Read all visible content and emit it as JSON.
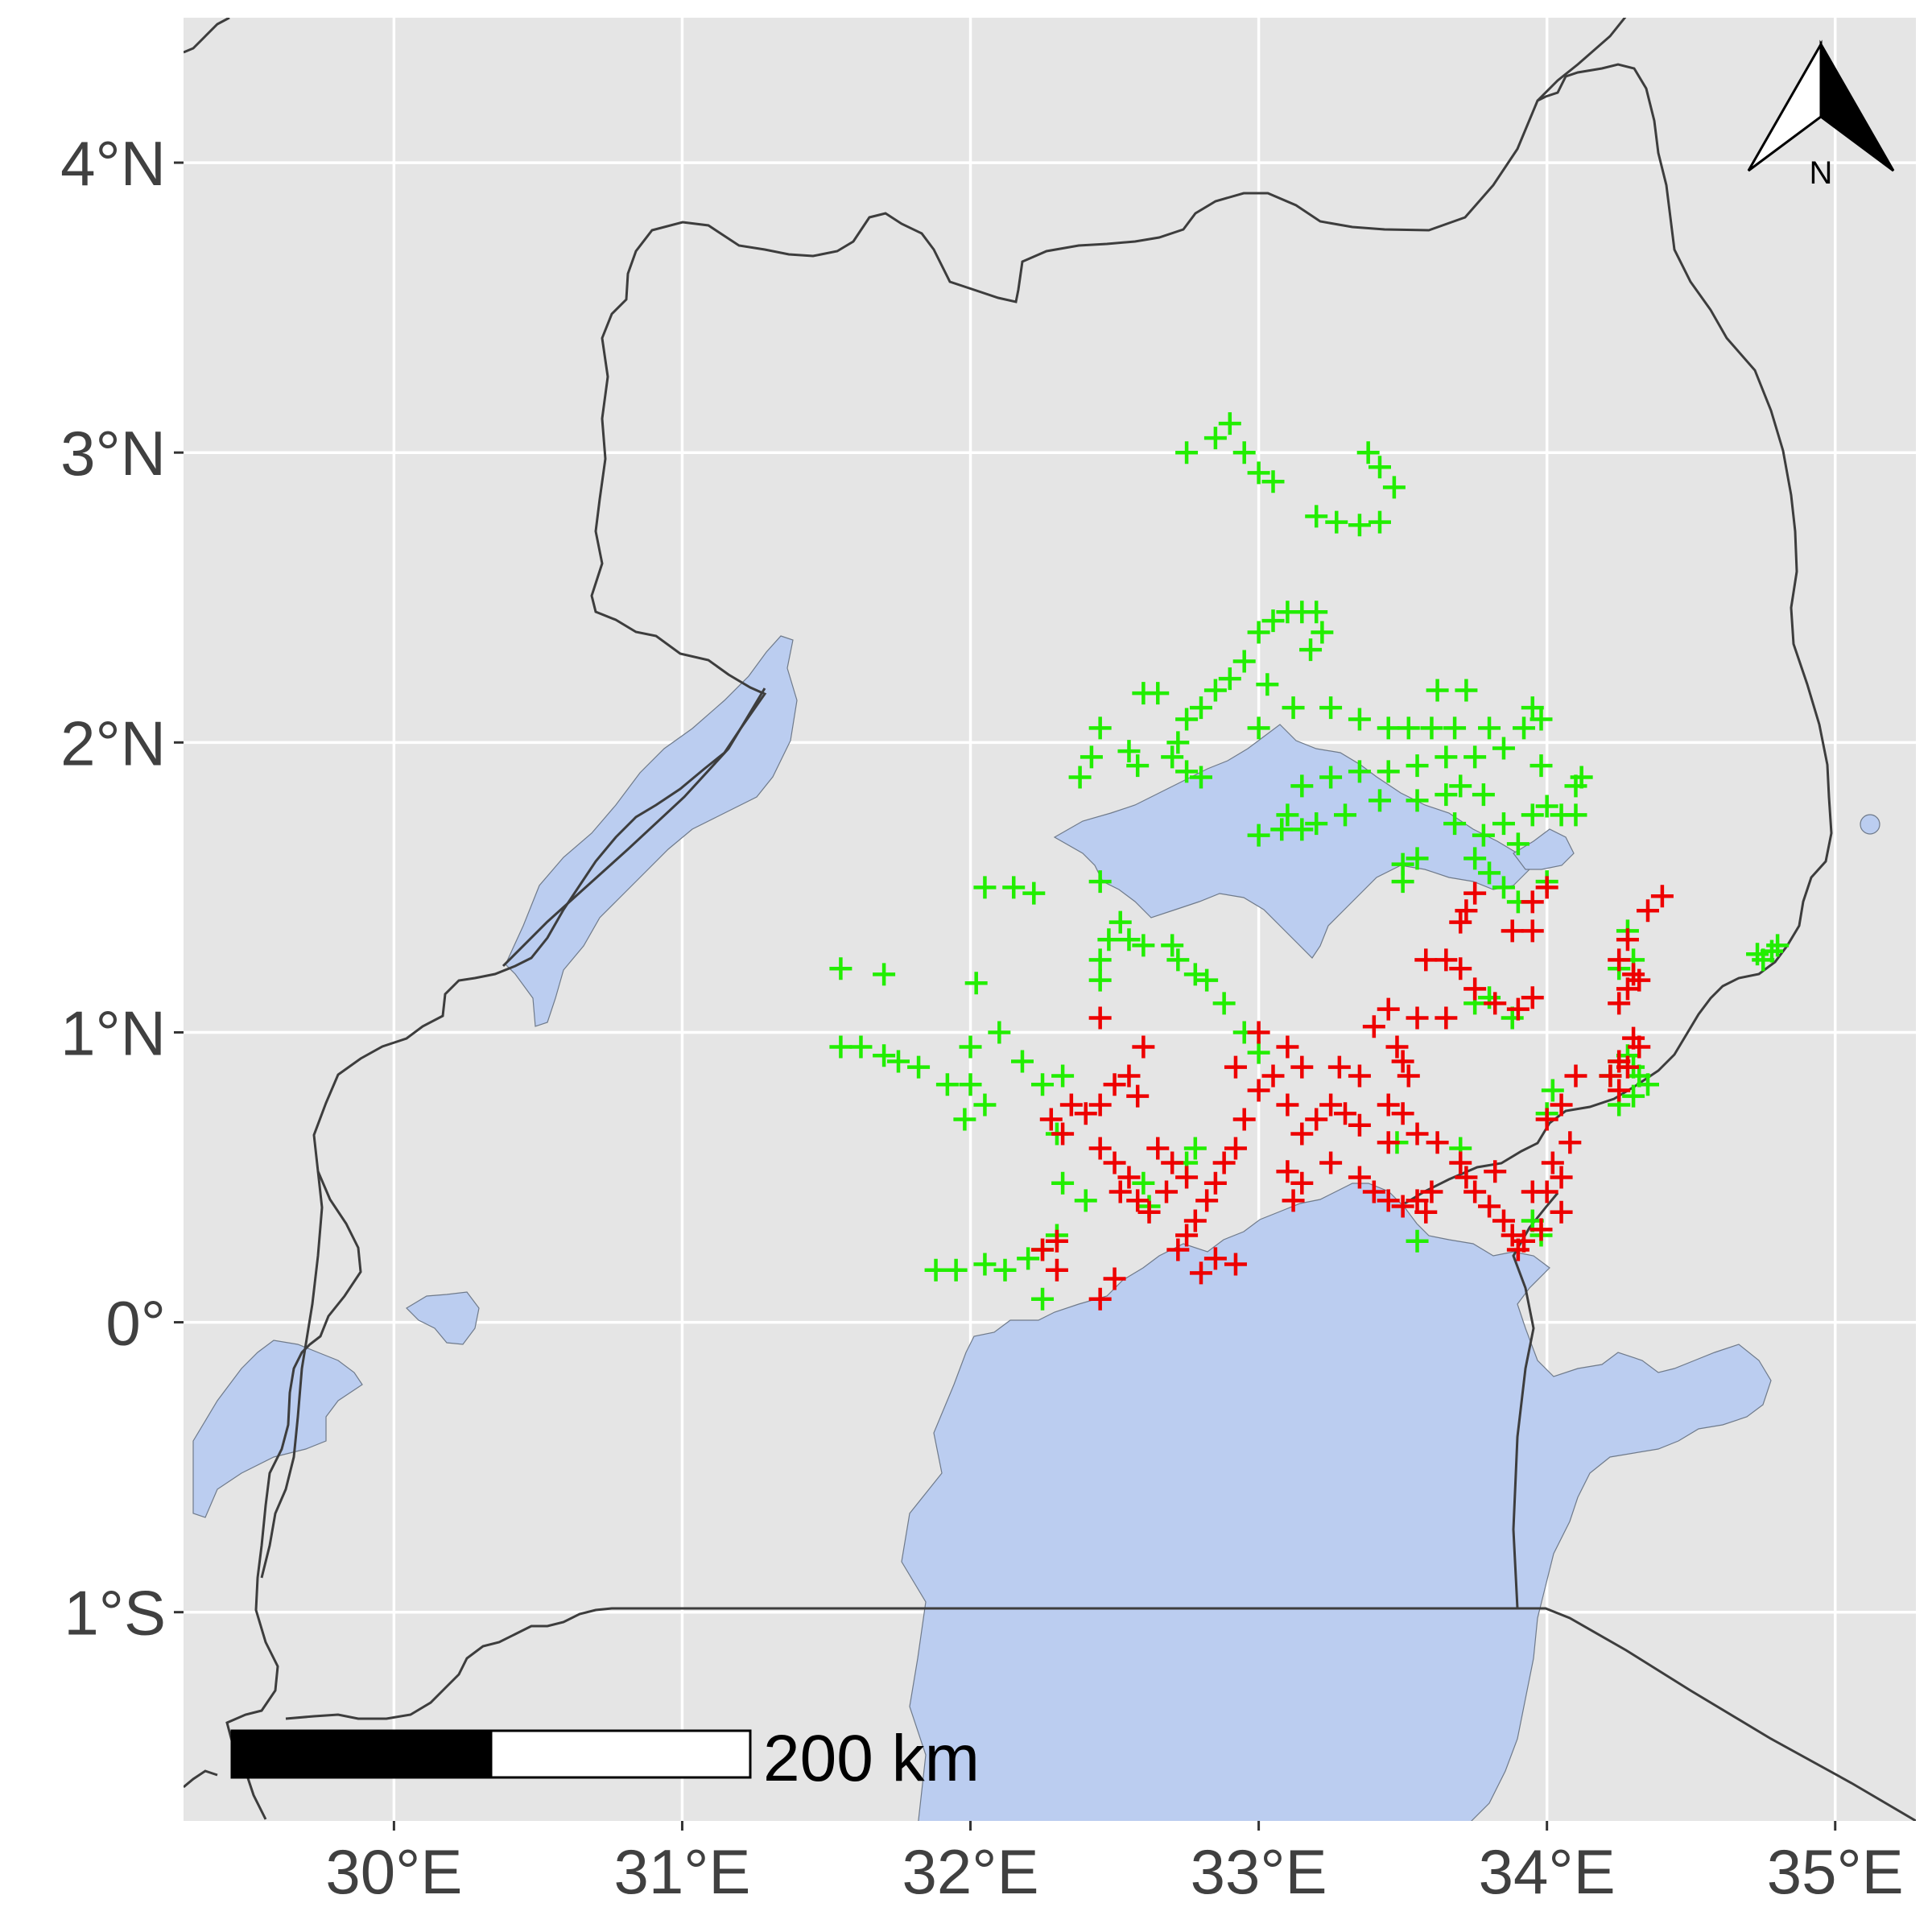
{
  "map": {
    "extent": {
      "lon_min": 29.27,
      "lon_max": 35.28,
      "lat_min": -1.72,
      "lat_max": 4.5
    },
    "colors": {
      "land": "#e5e5e5",
      "water": "#bbcdf0",
      "border": "#3d3d3d",
      "grid": "#ffffff",
      "series_green": "#22ee00",
      "series_red": "#ee0000"
    },
    "x_ticks": [
      {
        "value": 30,
        "label": "30°E"
      },
      {
        "value": 31,
        "label": "31°E"
      },
      {
        "value": 32,
        "label": "32°E"
      },
      {
        "value": 33,
        "label": "33°E"
      },
      {
        "value": 34,
        "label": "34°E"
      },
      {
        "value": 35,
        "label": "35°E"
      }
    ],
    "y_ticks": [
      {
        "value": 4,
        "label": "4°N"
      },
      {
        "value": 3,
        "label": "3°N"
      },
      {
        "value": 2,
        "label": "2°N"
      },
      {
        "value": 1,
        "label": "1°N"
      },
      {
        "value": 0,
        "label": "0°"
      },
      {
        "value": -1,
        "label": "1°S"
      }
    ],
    "scale_bar": {
      "label": "200 km"
    },
    "north_arrow": {
      "label": "N",
      "icon": "north-arrow-icon"
    }
  },
  "chart_data": {
    "type": "scatter",
    "xlabel": "",
    "ylabel": "",
    "xlim": [
      29.27,
      35.28
    ],
    "ylim": [
      -1.72,
      4.5
    ],
    "grid": true,
    "series": [
      {
        "color": "#22ee00",
        "marker": "plus",
        "points": [
          [
            32.75,
            3.0
          ],
          [
            32.85,
            3.05
          ],
          [
            32.9,
            3.1
          ],
          [
            32.95,
            3.0
          ],
          [
            33.0,
            2.93
          ],
          [
            33.05,
            2.9
          ],
          [
            33.38,
            3.0
          ],
          [
            33.42,
            2.95
          ],
          [
            33.47,
            2.88
          ],
          [
            33.2,
            2.78
          ],
          [
            33.27,
            2.76
          ],
          [
            33.35,
            2.75
          ],
          [
            33.42,
            2.76
          ],
          [
            33.1,
            2.45
          ],
          [
            33.15,
            2.45
          ],
          [
            33.2,
            2.45
          ],
          [
            33.0,
            2.38
          ],
          [
            33.05,
            2.42
          ],
          [
            33.18,
            2.32
          ],
          [
            33.22,
            2.38
          ],
          [
            32.95,
            2.28
          ],
          [
            32.9,
            2.22
          ],
          [
            32.85,
            2.18
          ],
          [
            32.8,
            2.12
          ],
          [
            32.75,
            2.08
          ],
          [
            32.72,
            2.0
          ],
          [
            32.7,
            1.95
          ],
          [
            32.75,
            1.9
          ],
          [
            32.8,
            1.88
          ],
          [
            32.6,
            2.17
          ],
          [
            32.65,
            2.17
          ],
          [
            33.03,
            2.2
          ],
          [
            33.12,
            2.12
          ],
          [
            33.0,
            2.05
          ],
          [
            33.25,
            2.12
          ],
          [
            33.35,
            2.08
          ],
          [
            33.45,
            2.05
          ],
          [
            33.52,
            2.05
          ],
          [
            33.6,
            2.05
          ],
          [
            33.68,
            2.05
          ],
          [
            33.72,
            2.18
          ],
          [
            33.8,
            2.05
          ],
          [
            33.62,
            2.18
          ],
          [
            33.95,
            2.12
          ],
          [
            33.98,
            2.08
          ],
          [
            33.92,
            2.05
          ],
          [
            33.85,
            1.98
          ],
          [
            33.75,
            1.95
          ],
          [
            33.65,
            1.95
          ],
          [
            33.55,
            1.92
          ],
          [
            33.45,
            1.9
          ],
          [
            33.35,
            1.9
          ],
          [
            33.25,
            1.88
          ],
          [
            33.15,
            1.85
          ],
          [
            33.1,
            1.75
          ],
          [
            33.2,
            1.72
          ],
          [
            33.3,
            1.75
          ],
          [
            33.42,
            1.8
          ],
          [
            33.55,
            1.8
          ],
          [
            33.65,
            1.82
          ],
          [
            33.7,
            1.85
          ],
          [
            33.78,
            1.82
          ],
          [
            33.68,
            1.72
          ],
          [
            33.78,
            1.68
          ],
          [
            33.85,
            1.72
          ],
          [
            33.9,
            1.65
          ],
          [
            33.95,
            1.75
          ],
          [
            34.0,
            1.78
          ],
          [
            34.05,
            1.75
          ],
          [
            34.1,
            1.75
          ],
          [
            34.1,
            1.85
          ],
          [
            34.12,
            1.88
          ],
          [
            33.98,
            1.92
          ],
          [
            33.75,
            1.6
          ],
          [
            33.8,
            1.55
          ],
          [
            33.85,
            1.5
          ],
          [
            33.9,
            1.45
          ],
          [
            34.0,
            1.52
          ],
          [
            33.5,
            1.52
          ],
          [
            33.5,
            1.58
          ],
          [
            33.55,
            1.6
          ],
          [
            33.0,
            1.68
          ],
          [
            33.08,
            1.7
          ],
          [
            33.15,
            1.7
          ],
          [
            32.45,
            2.05
          ],
          [
            32.42,
            1.95
          ],
          [
            32.38,
            1.88
          ],
          [
            32.55,
            1.97
          ],
          [
            32.58,
            1.92
          ],
          [
            32.05,
            1.5
          ],
          [
            32.15,
            1.5
          ],
          [
            32.22,
            1.48
          ],
          [
            32.45,
            1.52
          ],
          [
            32.52,
            1.38
          ],
          [
            32.55,
            1.32
          ],
          [
            32.6,
            1.3
          ],
          [
            32.48,
            1.32
          ],
          [
            32.45,
            1.25
          ],
          [
            32.45,
            1.18
          ],
          [
            32.7,
            1.3
          ],
          [
            32.72,
            1.25
          ],
          [
            32.78,
            1.2
          ],
          [
            32.82,
            1.18
          ],
          [
            32.88,
            1.1
          ],
          [
            32.95,
            1.0
          ],
          [
            31.55,
            1.22
          ],
          [
            31.7,
            1.2
          ],
          [
            31.55,
            0.95
          ],
          [
            31.62,
            0.95
          ],
          [
            31.7,
            0.92
          ],
          [
            31.75,
            0.9
          ],
          [
            31.82,
            0.88
          ],
          [
            31.92,
            0.82
          ],
          [
            32.0,
            0.95
          ],
          [
            32.02,
            1.17
          ],
          [
            32.1,
            1.0
          ],
          [
            32.0,
            0.82
          ],
          [
            32.05,
            0.75
          ],
          [
            31.98,
            0.7
          ],
          [
            32.18,
            0.9
          ],
          [
            32.25,
            0.82
          ],
          [
            32.32,
            0.85
          ],
          [
            32.3,
            0.65
          ],
          [
            32.32,
            0.48
          ],
          [
            32.4,
            0.42
          ],
          [
            32.3,
            0.3
          ],
          [
            32.25,
            0.25
          ],
          [
            32.2,
            0.22
          ],
          [
            32.12,
            0.18
          ],
          [
            32.05,
            0.2
          ],
          [
            31.95,
            0.18
          ],
          [
            31.88,
            0.18
          ],
          [
            32.25,
            0.08
          ],
          [
            32.6,
            0.48
          ],
          [
            32.62,
            0.4
          ],
          [
            32.75,
            0.55
          ],
          [
            32.78,
            0.6
          ],
          [
            33.0,
            0.93
          ],
          [
            33.55,
            0.28
          ],
          [
            33.48,
            0.62
          ],
          [
            33.7,
            0.6
          ],
          [
            33.75,
            1.1
          ],
          [
            33.8,
            1.12
          ],
          [
            33.88,
            1.05
          ],
          [
            33.95,
            0.35
          ],
          [
            33.98,
            0.3
          ],
          [
            34.0,
            0.72
          ],
          [
            34.02,
            0.8
          ],
          [
            34.22,
            0.85
          ],
          [
            34.25,
            0.9
          ],
          [
            34.28,
            0.92
          ],
          [
            34.3,
            0.88
          ],
          [
            34.32,
            0.85
          ],
          [
            34.35,
            0.82
          ],
          [
            34.25,
            0.75
          ],
          [
            34.3,
            0.78
          ],
          [
            34.25,
            1.22
          ],
          [
            34.3,
            1.25
          ],
          [
            34.28,
            1.35
          ],
          [
            34.75,
            1.25
          ],
          [
            34.78,
            1.28
          ],
          [
            34.8,
            1.3
          ],
          [
            34.73,
            1.27
          ]
        ]
      },
      {
        "color": "#ee0000",
        "marker": "plus",
        "points": [
          [
            34.4,
            1.47
          ],
          [
            34.35,
            1.42
          ],
          [
            34.28,
            1.32
          ],
          [
            34.25,
            1.25
          ],
          [
            34.3,
            1.2
          ],
          [
            34.32,
            1.18
          ],
          [
            34.28,
            1.15
          ],
          [
            34.25,
            1.1
          ],
          [
            34.3,
            0.98
          ],
          [
            34.32,
            0.95
          ],
          [
            34.25,
            0.9
          ],
          [
            34.28,
            0.88
          ],
          [
            34.22,
            0.85
          ],
          [
            34.25,
            0.8
          ],
          [
            34.1,
            0.85
          ],
          [
            34.05,
            0.75
          ],
          [
            34.0,
            0.7
          ],
          [
            34.08,
            0.62
          ],
          [
            34.02,
            0.55
          ],
          [
            34.05,
            0.5
          ],
          [
            34.0,
            0.45
          ],
          [
            34.05,
            0.38
          ],
          [
            33.98,
            0.32
          ],
          [
            33.92,
            0.28
          ],
          [
            33.9,
            0.25
          ],
          [
            34.0,
            1.5
          ],
          [
            33.95,
            1.45
          ],
          [
            33.95,
            1.35
          ],
          [
            33.88,
            1.35
          ],
          [
            33.75,
            1.48
          ],
          [
            33.72,
            1.42
          ],
          [
            33.7,
            1.38
          ],
          [
            33.58,
            1.25
          ],
          [
            33.65,
            1.25
          ],
          [
            33.7,
            1.22
          ],
          [
            33.75,
            1.15
          ],
          [
            33.82,
            1.1
          ],
          [
            33.9,
            1.08
          ],
          [
            33.95,
            1.12
          ],
          [
            33.65,
            1.05
          ],
          [
            33.55,
            1.05
          ],
          [
            33.45,
            1.08
          ],
          [
            33.4,
            1.02
          ],
          [
            33.48,
            0.95
          ],
          [
            33.5,
            0.9
          ],
          [
            33.52,
            0.85
          ],
          [
            33.45,
            0.75
          ],
          [
            33.5,
            0.72
          ],
          [
            33.55,
            0.65
          ],
          [
            33.45,
            0.62
          ],
          [
            33.35,
            0.68
          ],
          [
            33.3,
            0.72
          ],
          [
            33.25,
            0.75
          ],
          [
            33.2,
            0.7
          ],
          [
            33.15,
            0.65
          ],
          [
            33.1,
            0.75
          ],
          [
            33.05,
            0.85
          ],
          [
            33.0,
            1.0
          ],
          [
            33.0,
            0.8
          ],
          [
            32.95,
            0.7
          ],
          [
            32.92,
            0.6
          ],
          [
            32.88,
            0.55
          ],
          [
            32.85,
            0.48
          ],
          [
            32.82,
            0.42
          ],
          [
            32.78,
            0.35
          ],
          [
            32.75,
            0.3
          ],
          [
            32.72,
            0.25
          ],
          [
            32.85,
            0.22
          ],
          [
            32.92,
            0.2
          ],
          [
            32.8,
            0.17
          ],
          [
            32.6,
            0.95
          ],
          [
            32.55,
            0.85
          ],
          [
            32.5,
            0.82
          ],
          [
            32.58,
            0.78
          ],
          [
            32.45,
            0.75
          ],
          [
            32.4,
            0.72
          ],
          [
            32.35,
            0.75
          ],
          [
            32.28,
            0.7
          ],
          [
            32.32,
            0.65
          ],
          [
            32.45,
            0.6
          ],
          [
            32.5,
            0.55
          ],
          [
            32.55,
            0.5
          ],
          [
            32.52,
            0.45
          ],
          [
            32.58,
            0.42
          ],
          [
            32.65,
            0.6
          ],
          [
            32.7,
            0.55
          ],
          [
            32.75,
            0.5
          ],
          [
            32.68,
            0.45
          ],
          [
            32.62,
            0.38
          ],
          [
            32.45,
            1.05
          ],
          [
            32.3,
            0.28
          ],
          [
            32.25,
            0.25
          ],
          [
            32.3,
            0.18
          ],
          [
            32.5,
            0.15
          ],
          [
            32.45,
            0.08
          ],
          [
            33.1,
            0.52
          ],
          [
            33.15,
            0.48
          ],
          [
            33.12,
            0.42
          ],
          [
            33.25,
            0.55
          ],
          [
            33.35,
            0.5
          ],
          [
            33.4,
            0.45
          ],
          [
            33.45,
            0.42
          ],
          [
            33.5,
            0.4
          ],
          [
            33.55,
            0.42
          ],
          [
            33.58,
            0.38
          ],
          [
            33.6,
            0.45
          ],
          [
            33.62,
            0.62
          ],
          [
            33.7,
            0.55
          ],
          [
            33.72,
            0.5
          ],
          [
            33.75,
            0.45
          ],
          [
            33.8,
            0.4
          ],
          [
            33.85,
            0.35
          ],
          [
            33.88,
            0.3
          ],
          [
            33.82,
            0.52
          ],
          [
            33.95,
            0.45
          ],
          [
            33.28,
            0.88
          ],
          [
            33.35,
            0.85
          ],
          [
            32.92,
            0.88
          ],
          [
            33.1,
            0.95
          ],
          [
            33.15,
            0.88
          ]
        ]
      }
    ]
  }
}
